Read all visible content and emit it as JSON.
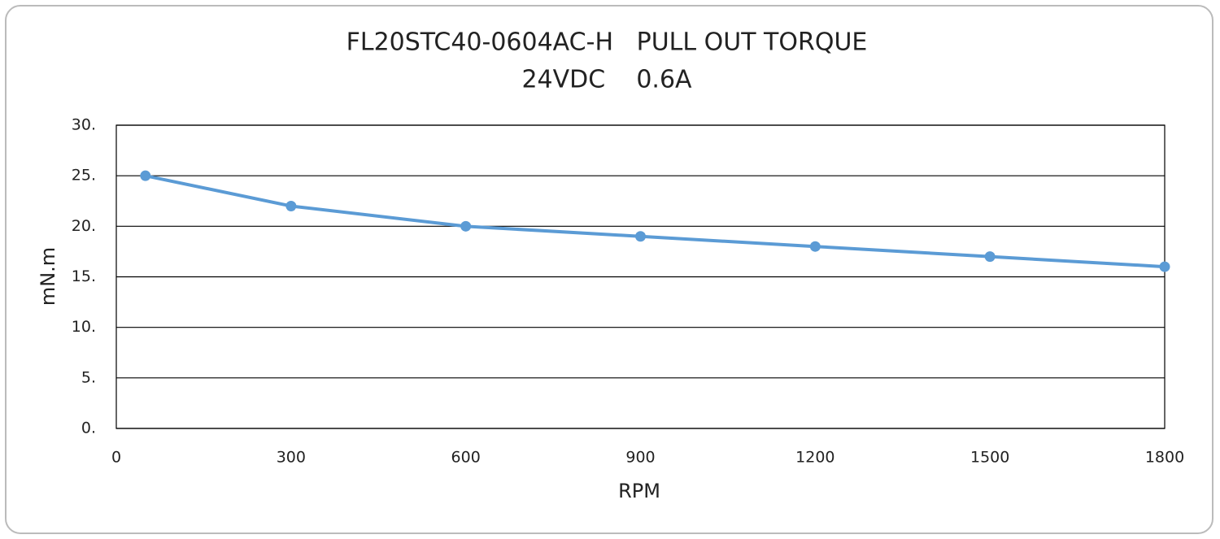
{
  "chart_data": {
    "type": "line",
    "title": "FL20STC40-0604AC-H   PULL OUT TORQUE",
    "subtitle": "24VDC    0.6A",
    "x_label": "RPM",
    "y_label": "mN.m",
    "x": [
      50,
      300,
      600,
      900,
      1200,
      1500,
      1800
    ],
    "series": [
      {
        "name": "Pull out torque",
        "color": "#5b9bd5",
        "values": [
          25,
          22,
          20,
          19,
          18,
          17,
          16
        ]
      }
    ],
    "xlim": [
      0,
      1800
    ],
    "xticks": [
      0,
      300,
      600,
      900,
      1200,
      1500,
      1800
    ],
    "ylim": [
      0,
      30
    ],
    "yticks": [
      {
        "value": 0,
        "label": "0."
      },
      {
        "value": 5,
        "label": "5."
      },
      {
        "value": 10,
        "label": "10."
      },
      {
        "value": 15,
        "label": "15."
      },
      {
        "value": 20,
        "label": "20."
      },
      {
        "value": 25,
        "label": "25."
      },
      {
        "value": 30,
        "label": "30."
      }
    ],
    "grid": true
  }
}
